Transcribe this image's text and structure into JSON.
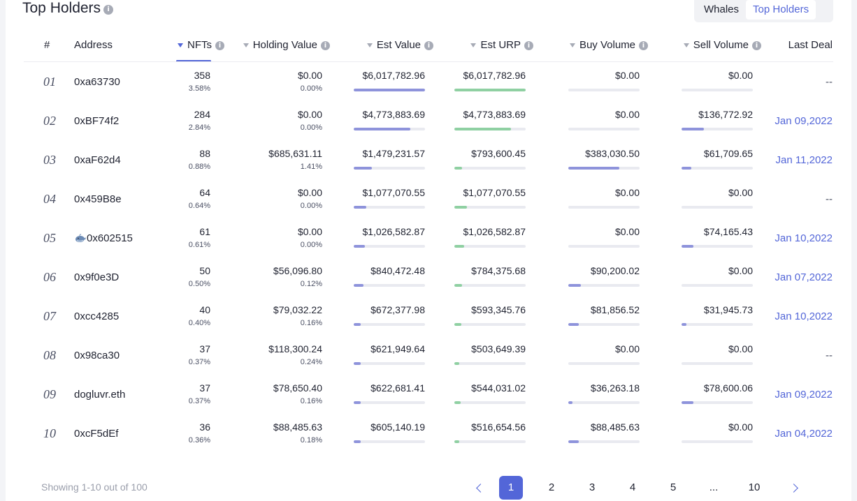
{
  "title": "Top Holders",
  "tabs": [
    {
      "label": "Whales"
    },
    {
      "label": "Top Holders"
    }
  ],
  "columns": {
    "index": "#",
    "address": "Address",
    "nfts": "NFTs",
    "holding_value": "Holding Value",
    "est_value": "Est Value",
    "est_urp": "Est URP",
    "buy_volume": "Buy Volume",
    "sell_volume": "Sell Volume",
    "last_deal": "Last Deal"
  },
  "rows": [
    {
      "index": "01",
      "address": "0xa63730",
      "whale": false,
      "nfts": "358",
      "nfts_pct": "3.58%",
      "holding": "$0.00",
      "holding_pct": "0.00%",
      "est_value": "$6,017,782.96",
      "est_value_level": 1.0,
      "est_urp": "$6,017,782.96",
      "est_urp_level": 1.0,
      "buy": "$0.00",
      "buy_level": 0.0,
      "sell": "$0.00",
      "sell_level": 0.0,
      "last_deal": "--"
    },
    {
      "index": "02",
      "address": "0xBF74f2",
      "whale": false,
      "nfts": "284",
      "nfts_pct": "2.84%",
      "holding": "$0.00",
      "holding_pct": "0.00%",
      "est_value": "$4,773,883.69",
      "est_value_level": 0.79,
      "est_urp": "$4,773,883.69",
      "est_urp_level": 0.79,
      "buy": "$0.00",
      "buy_level": 0.0,
      "sell": "$136,772.92",
      "sell_level": 0.31,
      "last_deal": "Jan 09,2022"
    },
    {
      "index": "03",
      "address": "0xaF62d4",
      "whale": false,
      "nfts": "88",
      "nfts_pct": "0.88%",
      "holding": "$685,631.11",
      "holding_pct": "1.41%",
      "est_value": "$1,479,231.57",
      "est_value_level": 0.25,
      "est_urp": "$793,600.45",
      "est_urp_level": 0.11,
      "buy": "$383,030.50",
      "buy_level": 0.72,
      "sell": "$61,709.65",
      "sell_level": 0.14,
      "last_deal": "Jan 11,2022"
    },
    {
      "index": "04",
      "address": "0x459B8e",
      "whale": false,
      "nfts": "64",
      "nfts_pct": "0.64%",
      "holding": "$0.00",
      "holding_pct": "0.00%",
      "est_value": "$1,077,070.55",
      "est_value_level": 0.18,
      "est_urp": "$1,077,070.55",
      "est_urp_level": 0.18,
      "buy": "$0.00",
      "buy_level": 0.0,
      "sell": "$0.00",
      "sell_level": 0.0,
      "last_deal": "--"
    },
    {
      "index": "05",
      "address": "0x602515",
      "whale": true,
      "nfts": "61",
      "nfts_pct": "0.61%",
      "holding": "$0.00",
      "holding_pct": "0.00%",
      "est_value": "$1,026,582.87",
      "est_value_level": 0.16,
      "est_urp": "$1,026,582.87",
      "est_urp_level": 0.14,
      "buy": "$0.00",
      "buy_level": 0.0,
      "sell": "$74,165.43",
      "sell_level": 0.17,
      "last_deal": "Jan 10,2022"
    },
    {
      "index": "06",
      "address": "0x9f0e3D",
      "whale": false,
      "nfts": "50",
      "nfts_pct": "0.50%",
      "holding": "$56,096.80",
      "holding_pct": "0.12%",
      "est_value": "$840,472.48",
      "est_value_level": 0.14,
      "est_urp": "$784,375.68",
      "est_urp_level": 0.11,
      "buy": "$90,200.02",
      "buy_level": 0.18,
      "sell": "$0.00",
      "sell_level": 0.0,
      "last_deal": "Jan 07,2022"
    },
    {
      "index": "07",
      "address": "0xcc4285",
      "whale": false,
      "nfts": "40",
      "nfts_pct": "0.40%",
      "holding": "$79,032.22",
      "holding_pct": "0.16%",
      "est_value": "$672,377.98",
      "est_value_level": 0.1,
      "est_urp": "$593,345.76",
      "est_urp_level": 0.1,
      "buy": "$81,856.52",
      "buy_level": 0.15,
      "sell": "$31,945.73",
      "sell_level": 0.07,
      "last_deal": "Jan 10,2022"
    },
    {
      "index": "08",
      "address": "0x98ca30",
      "whale": false,
      "nfts": "37",
      "nfts_pct": "0.37%",
      "holding": "$118,300.24",
      "holding_pct": "0.24%",
      "est_value": "$621,949.64",
      "est_value_level": 0.1,
      "est_urp": "$503,649.39",
      "est_urp_level": 0.07,
      "buy": "$0.00",
      "buy_level": 0.0,
      "sell": "$0.00",
      "sell_level": 0.0,
      "last_deal": "--"
    },
    {
      "index": "09",
      "address": "dogluvr.eth",
      "whale": false,
      "nfts": "37",
      "nfts_pct": "0.37%",
      "holding": "$78,650.40",
      "holding_pct": "0.16%",
      "est_value": "$622,681.41",
      "est_value_level": 0.1,
      "est_urp": "$544,031.02",
      "est_urp_level": 0.09,
      "buy": "$36,263.18",
      "buy_level": 0.06,
      "sell": "$78,600.06",
      "sell_level": 0.17,
      "last_deal": "Jan 09,2022"
    },
    {
      "index": "10",
      "address": "0xcF5dEf",
      "whale": false,
      "nfts": "36",
      "nfts_pct": "0.36%",
      "holding": "$88,485.63",
      "holding_pct": "0.18%",
      "est_value": "$605,140.19",
      "est_value_level": 0.1,
      "est_urp": "$516,654.56",
      "est_urp_level": 0.07,
      "buy": "$88,485.63",
      "buy_level": 0.15,
      "sell": "$0.00",
      "sell_level": 0.0,
      "last_deal": "Jan 04,2022"
    }
  ],
  "footer": {
    "showing": "Showing 1-10 out of 100",
    "pages": [
      "1",
      "2",
      "3",
      "4",
      "5",
      "...",
      "10"
    ],
    "current_page": "1"
  },
  "colors": {
    "accent": "#5366d8",
    "bar_purple": "#8e93db",
    "bar_green": "#8fd0a2",
    "track": "#e9eaf0"
  }
}
